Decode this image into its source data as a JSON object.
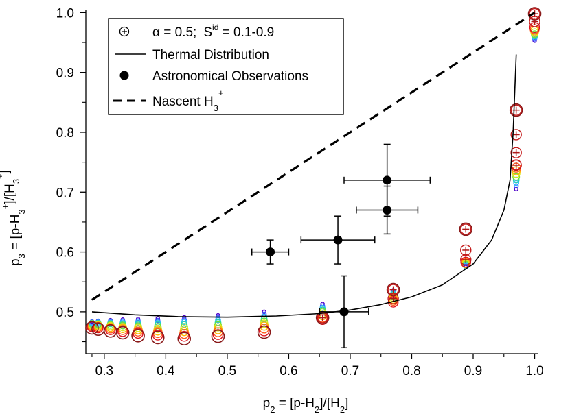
{
  "chart_data": {
    "type": "scatter",
    "title": "",
    "xlabel": {
      "main": "p",
      "sub": "2",
      "rest": " = [p-H",
      "sub2": "2",
      "rest2": "]/[H",
      "sub3": "2",
      "end": "]"
    },
    "ylabel": {
      "main": "p",
      "sub": "3",
      "rest": " = [p-H",
      "sub2": "3",
      "sup2": "+",
      "rest2": "]/[H",
      "sub3": "3",
      "sup3": "+",
      "end": "]"
    },
    "xlim": [
      0.27,
      1.005
    ],
    "ylim": [
      0.43,
      1.005
    ],
    "xticks": [
      0.3,
      0.4,
      0.5,
      0.6,
      0.7,
      0.8,
      0.9,
      1.0
    ],
    "xtick_labels": [
      "0.3",
      "0.4",
      "0.5",
      "0.6",
      "0.7",
      "0.8",
      "0.9",
      "1.0"
    ],
    "yticks": [
      0.5,
      0.6,
      0.7,
      0.8,
      0.9,
      1.0
    ],
    "ytick_labels": [
      "0.5",
      "0.6",
      "0.7",
      "0.8",
      "0.9",
      "1.0"
    ],
    "legend": {
      "position": "top-left",
      "entries": [
        {
          "kind": "model",
          "alpha": "α = 0.5;",
          "sid": " = 0.1-0.9",
          "sid_s": "S",
          "sid_sup": "id"
        },
        {
          "kind": "line",
          "label": "Thermal Distribution"
        },
        {
          "kind": "dot",
          "label": "Astronomical Observations"
        },
        {
          "kind": "dash",
          "label": "Nascent H",
          "sub": "3",
          "sup": "+"
        }
      ]
    },
    "series": [
      {
        "name": "Thermal Distribution",
        "style": "solid",
        "x": [
          0.28,
          0.35,
          0.42,
          0.5,
          0.58,
          0.65,
          0.7,
          0.75,
          0.8,
          0.85,
          0.9,
          0.93,
          0.95,
          0.96,
          0.965,
          0.97
        ],
        "y": [
          0.5,
          0.495,
          0.492,
          0.491,
          0.493,
          0.497,
          0.503,
          0.512,
          0.525,
          0.545,
          0.58,
          0.62,
          0.67,
          0.72,
          0.8,
          0.93
        ]
      },
      {
        "name": "Nascent H3+",
        "style": "dashed",
        "x": [
          0.28,
          1.0
        ],
        "y": [
          0.52,
          1.0
        ]
      },
      {
        "name": "Astronomical Observations",
        "style": "points-with-errorbars",
        "points": [
          {
            "x": 0.57,
            "y": 0.6,
            "xerr": 0.03,
            "yerr": 0.02
          },
          {
            "x": 0.68,
            "y": 0.62,
            "xerr": 0.06,
            "yerr": 0.04
          },
          {
            "x": 0.76,
            "y": 0.67,
            "xerr": 0.05,
            "yerr": 0.04
          },
          {
            "x": 0.76,
            "y": 0.72,
            "xerr": 0.07,
            "yerr": 0.06
          },
          {
            "x": 0.69,
            "y": 0.5,
            "xerr": 0.04,
            "yerr": 0.06
          }
        ]
      },
      {
        "name": "α = 0.5; Sid = 0.1-0.9",
        "style": "circle-markers",
        "sid_colors": [
          "#4b00c8",
          "#3a5cff",
          "#2eb6ff",
          "#27d6b0",
          "#6ee03c",
          "#d8e81c",
          "#ffb400",
          "#ff5a1e",
          "#e0141e"
        ],
        "x": [
          0.28,
          0.29,
          0.31,
          0.33,
          0.355,
          0.387,
          0.43,
          0.485,
          0.56,
          0.655,
          0.77,
          0.888,
          0.97,
          1.0
        ],
        "y_min_sid": [
          0.484,
          0.485,
          0.486,
          0.487,
          0.488,
          0.489,
          0.491,
          0.494,
          0.5,
          0.513,
          0.536,
          0.575,
          0.705,
          0.953
        ],
        "y_max_sid": [
          0.475,
          0.473,
          0.47,
          0.467,
          0.464,
          0.461,
          0.459,
          0.462,
          0.468,
          0.487,
          0.516,
          0.583,
          0.746,
          0.975
        ],
        "highlight": [
          {
            "x": 0.28,
            "y": 0.473
          },
          {
            "x": 0.29,
            "y": 0.471
          },
          {
            "x": 0.31,
            "y": 0.468
          },
          {
            "x": 0.33,
            "y": 0.465
          },
          {
            "x": 0.355,
            "y": 0.46
          },
          {
            "x": 0.387,
            "y": 0.457
          },
          {
            "x": 0.43,
            "y": 0.455
          },
          {
            "x": 0.485,
            "y": 0.459
          },
          {
            "x": 0.56,
            "y": 0.466
          },
          {
            "x": 0.655,
            "y": 0.49
          },
          {
            "x": 0.77,
            "y": 0.537
          },
          {
            "x": 0.888,
            "y": 0.638
          },
          {
            "x": 0.97,
            "y": 0.837
          },
          {
            "x": 1.0,
            "y": 0.998
          }
        ],
        "plus_markers": [
          {
            "x": 0.888,
            "y": 0.638
          },
          {
            "x": 0.888,
            "y": 0.603
          },
          {
            "x": 0.888,
            "y": 0.587
          },
          {
            "x": 0.97,
            "y": 0.837
          },
          {
            "x": 0.97,
            "y": 0.796
          },
          {
            "x": 0.97,
            "y": 0.766
          },
          {
            "x": 0.97,
            "y": 0.745
          },
          {
            "x": 0.77,
            "y": 0.537
          },
          {
            "x": 0.77,
            "y": 0.522
          },
          {
            "x": 0.655,
            "y": 0.49
          },
          {
            "x": 1.0,
            "y": 0.998
          },
          {
            "x": 1.0,
            "y": 0.985
          }
        ]
      }
    ]
  }
}
